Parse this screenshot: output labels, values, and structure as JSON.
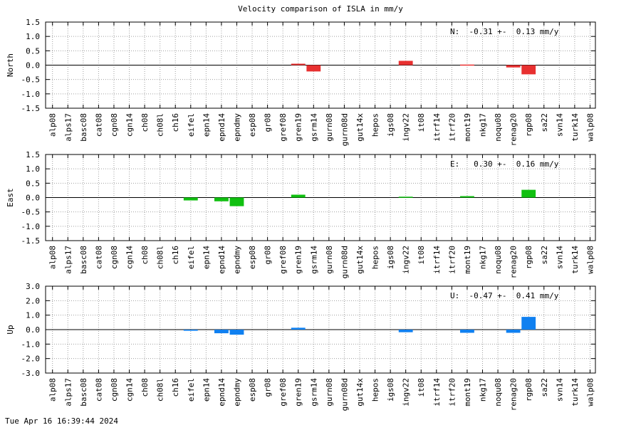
{
  "title": "Velocity comparison of ISLA in mm/y",
  "timestamp": "Tue Apr 16 16:39:44 2024",
  "chart_data": [
    {
      "type": "bar",
      "ylabel": "North",
      "annotation": "N:  -0.31 +-  0.13 mm/y",
      "color": "#e83030",
      "ylim": [
        -1.5,
        1.5
      ],
      "yticks": [
        -1.5,
        -1.0,
        -0.5,
        0.0,
        0.5,
        1.0,
        1.5
      ],
      "ytick_labels": [
        "-1.5",
        "-1.0",
        "-0.5",
        "0.0",
        "0.5",
        "1.0",
        "1.5"
      ],
      "categories": [
        "alp08",
        "alps17",
        "basc08",
        "cat08",
        "cgn08",
        "cgn14",
        "ch08",
        "ch08l",
        "ch16",
        "eifel",
        "epn14",
        "epnd14",
        "epndmy",
        "esp08",
        "gr08",
        "gref08",
        "gren19",
        "gsrm14",
        "gurn08",
        "gurn08d",
        "gut14x",
        "hepos",
        "igs08",
        "ingv22",
        "it08",
        "itrf14",
        "itrf20",
        "mont19",
        "nkg17",
        "noqu08",
        "renag20",
        "rgp08",
        "sa22",
        "svn14",
        "turk14",
        "walp08"
      ],
      "values": [
        null,
        null,
        null,
        null,
        null,
        null,
        null,
        null,
        null,
        null,
        null,
        null,
        null,
        null,
        null,
        null,
        0.05,
        -0.22,
        null,
        null,
        null,
        null,
        null,
        0.15,
        null,
        null,
        null,
        0.02,
        null,
        null,
        -0.08,
        -0.32,
        null,
        null,
        null,
        null
      ]
    },
    {
      "type": "bar",
      "ylabel": "East",
      "annotation": "E:   0.30 +-  0.16 mm/y",
      "color": "#10c010",
      "ylim": [
        -1.5,
        1.5
      ],
      "yticks": [
        -1.5,
        -1.0,
        -0.5,
        0.0,
        0.5,
        1.0,
        1.5
      ],
      "ytick_labels": [
        "-1.5",
        "-1.0",
        "-0.5",
        "0.0",
        "0.5",
        "1.0",
        "1.5"
      ],
      "categories": [
        "alp08",
        "alps17",
        "basc08",
        "cat08",
        "cgn08",
        "cgn14",
        "ch08",
        "ch08l",
        "ch16",
        "eifel",
        "epn14",
        "epnd14",
        "epndmy",
        "esp08",
        "gr08",
        "gref08",
        "gren19",
        "gsrm14",
        "gurn08",
        "gurn08d",
        "gut14x",
        "hepos",
        "igs08",
        "ingv22",
        "it08",
        "itrf14",
        "itrf20",
        "mont19",
        "nkg17",
        "noqu08",
        "renag20",
        "rgp08",
        "sa22",
        "svn14",
        "turk14",
        "walp08"
      ],
      "values": [
        null,
        null,
        null,
        null,
        null,
        null,
        null,
        null,
        null,
        -0.1,
        null,
        -0.13,
        -0.3,
        null,
        null,
        null,
        0.1,
        null,
        null,
        null,
        null,
        null,
        null,
        0.03,
        null,
        null,
        null,
        0.05,
        null,
        null,
        null,
        0.27,
        null,
        null,
        null,
        null
      ]
    },
    {
      "type": "bar",
      "ylabel": "Up",
      "annotation": "U:  -0.47 +-  0.41 mm/y",
      "color": "#1080f0",
      "ylim": [
        -3.0,
        3.0
      ],
      "yticks": [
        -3.0,
        -2.0,
        -1.0,
        0.0,
        1.0,
        2.0,
        3.0
      ],
      "ytick_labels": [
        "-3.0",
        "-2.0",
        "-1.0",
        "0.0",
        "1.0",
        "2.0",
        "3.0"
      ],
      "categories": [
        "alp08",
        "alps17",
        "basc08",
        "cat08",
        "cgn08",
        "cgn14",
        "ch08",
        "ch08l",
        "ch16",
        "eifel",
        "epn14",
        "epnd14",
        "epndmy",
        "esp08",
        "gr08",
        "gref08",
        "gren19",
        "gsrm14",
        "gurn08",
        "gurn08d",
        "gut14x",
        "hepos",
        "igs08",
        "ingv22",
        "it08",
        "itrf14",
        "itrf20",
        "mont19",
        "nkg17",
        "noqu08",
        "renag20",
        "rgp08",
        "sa22",
        "svn14",
        "turk14",
        "walp08"
      ],
      "values": [
        null,
        null,
        null,
        null,
        null,
        null,
        null,
        null,
        null,
        -0.08,
        null,
        -0.25,
        -0.35,
        null,
        null,
        null,
        0.13,
        null,
        null,
        null,
        null,
        null,
        null,
        -0.18,
        null,
        null,
        null,
        -0.22,
        null,
        null,
        -0.22,
        0.88,
        null,
        null,
        null,
        null
      ]
    }
  ]
}
